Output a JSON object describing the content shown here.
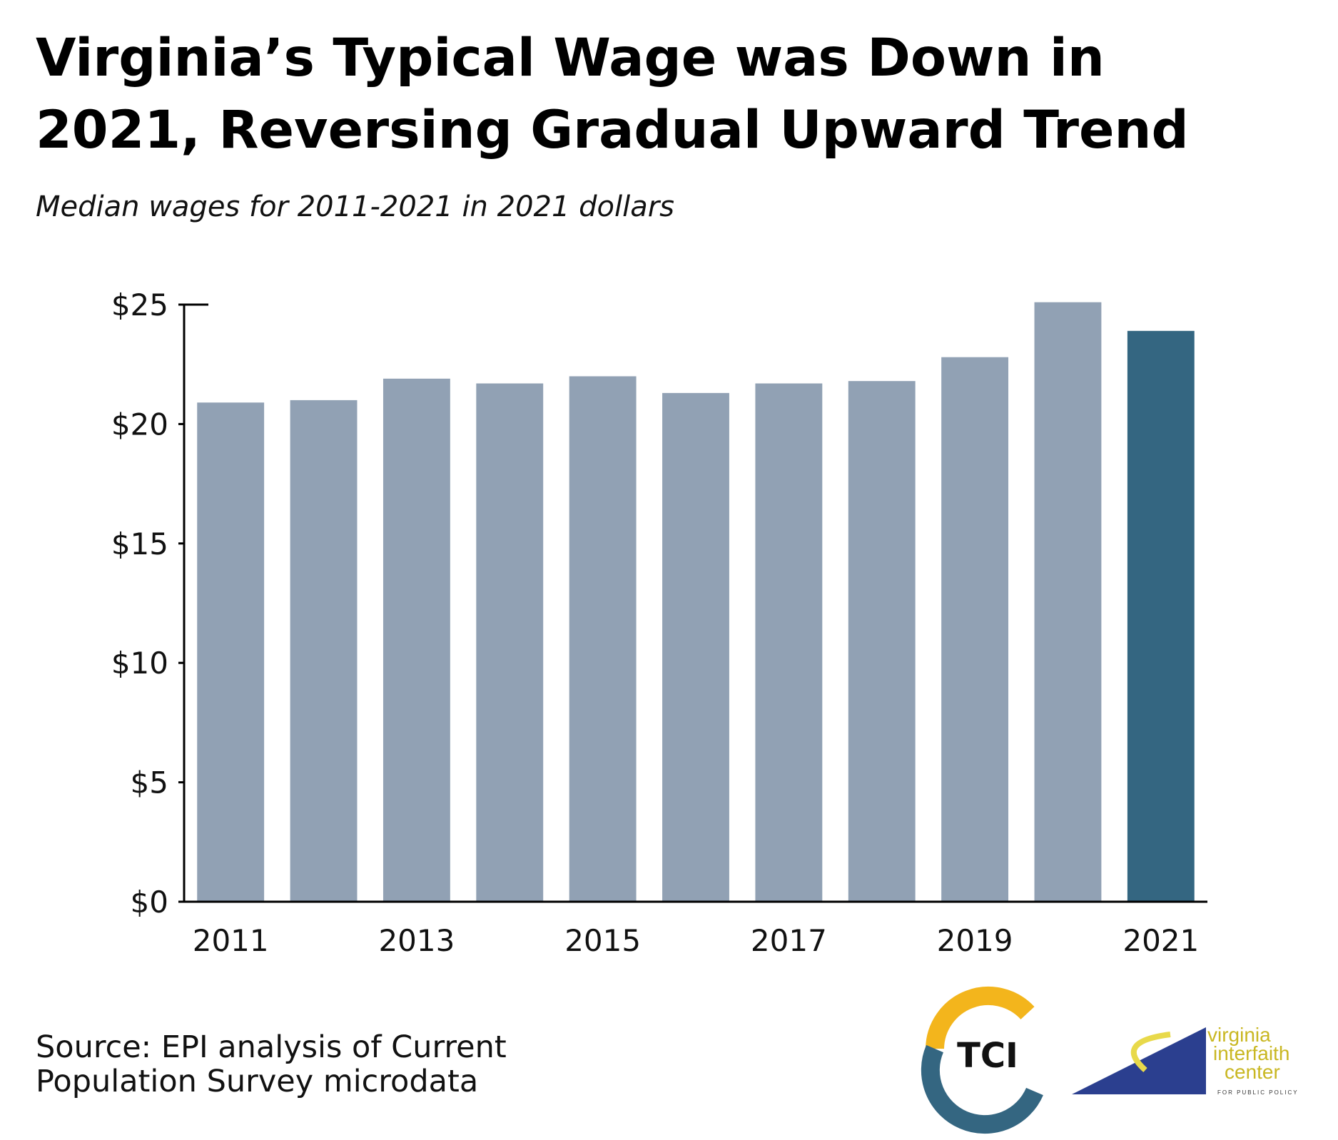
{
  "chart_data": {
    "type": "bar",
    "title": [
      "Virginia’s Typical Wage was Down in",
      "2021, Reversing Gradual Upward Trend"
    ],
    "subtitle": "Median wages for 2011-2021 in 2021 dollars",
    "categories": [
      "2011",
      null,
      "2013",
      null,
      "2015",
      null,
      "2017",
      null,
      "2019",
      null,
      "2021"
    ],
    "values": [
      20.9,
      21.0,
      21.9,
      21.7,
      22.0,
      21.3,
      21.7,
      21.8,
      22.8,
      25.1,
      23.9
    ],
    "colors": [
      "#91a1b4",
      "#91a1b4",
      "#91a1b4",
      "#91a1b4",
      "#91a1b4",
      "#91a1b4",
      "#91a1b4",
      "#91a1b4",
      "#91a1b4",
      "#91a1b4",
      "#346681"
    ],
    "ylim": [
      0,
      25
    ],
    "yticks": [
      {
        "value": 0,
        "label": "$0"
      },
      {
        "value": 5,
        "label": "$5"
      },
      {
        "value": 10,
        "label": "$10"
      },
      {
        "value": 15,
        "label": "$15"
      },
      {
        "value": 20,
        "label": "$20"
      },
      {
        "value": 25,
        "label": "$25"
      }
    ],
    "grid": false,
    "source": [
      "Source: EPI analysis of Current",
      "Population Survey microdata"
    ]
  },
  "logos": {
    "tci": "TCI",
    "vic": [
      "virginia",
      "interfaith",
      "center",
      "FOR PUBLIC POLICY"
    ]
  }
}
